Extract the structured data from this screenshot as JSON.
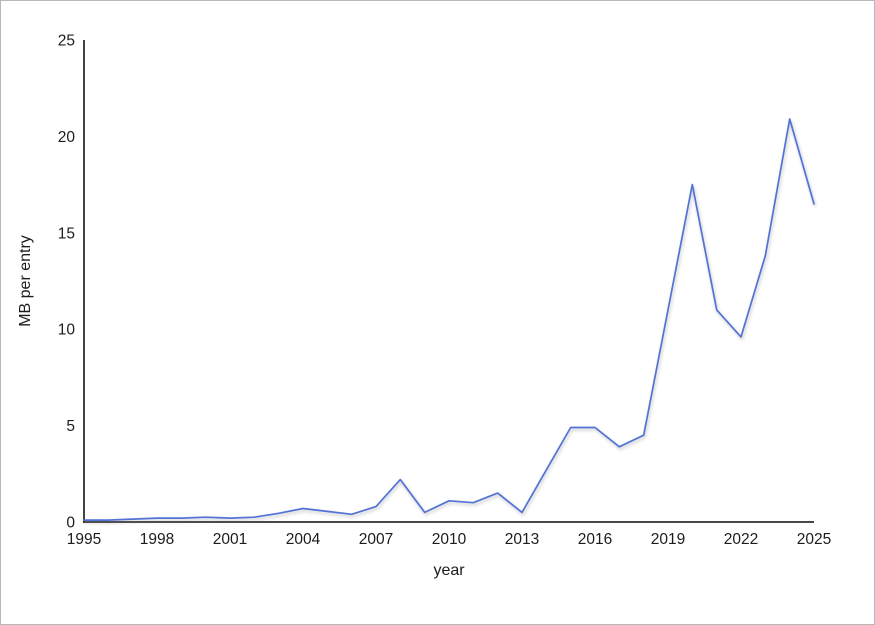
{
  "window": {
    "background": "#ffffff",
    "border_color": "#b7b7b7"
  },
  "chart_data": {
    "type": "line",
    "title": "",
    "xlabel": "year",
    "ylabel": "MB per entry",
    "x": [
      1995,
      1996,
      1997,
      1998,
      1999,
      2000,
      2001,
      2002,
      2003,
      2004,
      2005,
      2006,
      2007,
      2008,
      2009,
      2010,
      2011,
      2012,
      2013,
      2014,
      2015,
      2016,
      2017,
      2018,
      2019,
      2020,
      2021,
      2022,
      2023,
      2024,
      2025
    ],
    "values": [
      0.1,
      0.1,
      0.15,
      0.2,
      0.2,
      0.25,
      0.2,
      0.25,
      0.45,
      0.7,
      0.55,
      0.4,
      0.8,
      2.2,
      0.5,
      1.1,
      1.0,
      1.5,
      0.5,
      2.7,
      4.9,
      4.9,
      3.9,
      4.5,
      11.0,
      17.5,
      11.0,
      9.6,
      13.8,
      20.9,
      16.5
    ],
    "x_ticks": [
      1995,
      1998,
      2001,
      2004,
      2007,
      2010,
      2013,
      2016,
      2019,
      2022,
      2025
    ],
    "y_ticks": [
      0,
      5,
      10,
      15,
      20,
      25
    ],
    "xlim": [
      1995,
      2025
    ],
    "ylim": [
      0,
      25
    ],
    "grid": false,
    "legend": "none",
    "line_color": "#5272d8",
    "axis_color": "#2e2e2e",
    "label_color": "#1c1c1c"
  }
}
